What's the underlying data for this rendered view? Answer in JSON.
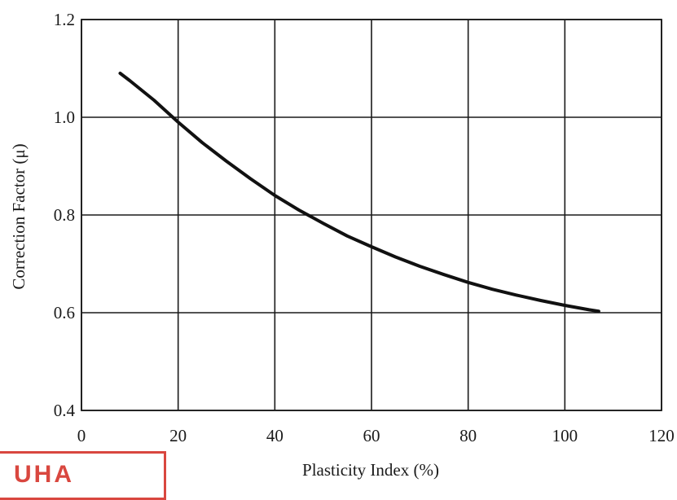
{
  "chart_data": {
    "type": "line",
    "xlabel": "Plasticity Index (%)",
    "ylabel": "Correction Factor (μ)",
    "xlim": [
      0,
      120
    ],
    "ylim": [
      0.4,
      1.2
    ],
    "xticks": [
      "0",
      "20",
      "40",
      "60",
      "80",
      "100",
      "120"
    ],
    "yticks": [
      "0.4",
      "0.6",
      "0.8",
      "1.0",
      "1.2"
    ],
    "grid": true,
    "series": [
      {
        "x": [
          8,
          10,
          15,
          20,
          25,
          30,
          35,
          40,
          45,
          50,
          55,
          60,
          65,
          70,
          75,
          80,
          85,
          90,
          95,
          100,
          105,
          107
        ],
        "y": [
          1.09,
          1.075,
          1.035,
          0.99,
          0.948,
          0.91,
          0.874,
          0.84,
          0.81,
          0.783,
          0.757,
          0.735,
          0.714,
          0.695,
          0.678,
          0.662,
          0.648,
          0.636,
          0.625,
          0.615,
          0.606,
          0.603
        ]
      }
    ],
    "line_color": "#111111",
    "grid_color": "#1a1a1a"
  },
  "stamp": {
    "text": "UHA"
  }
}
